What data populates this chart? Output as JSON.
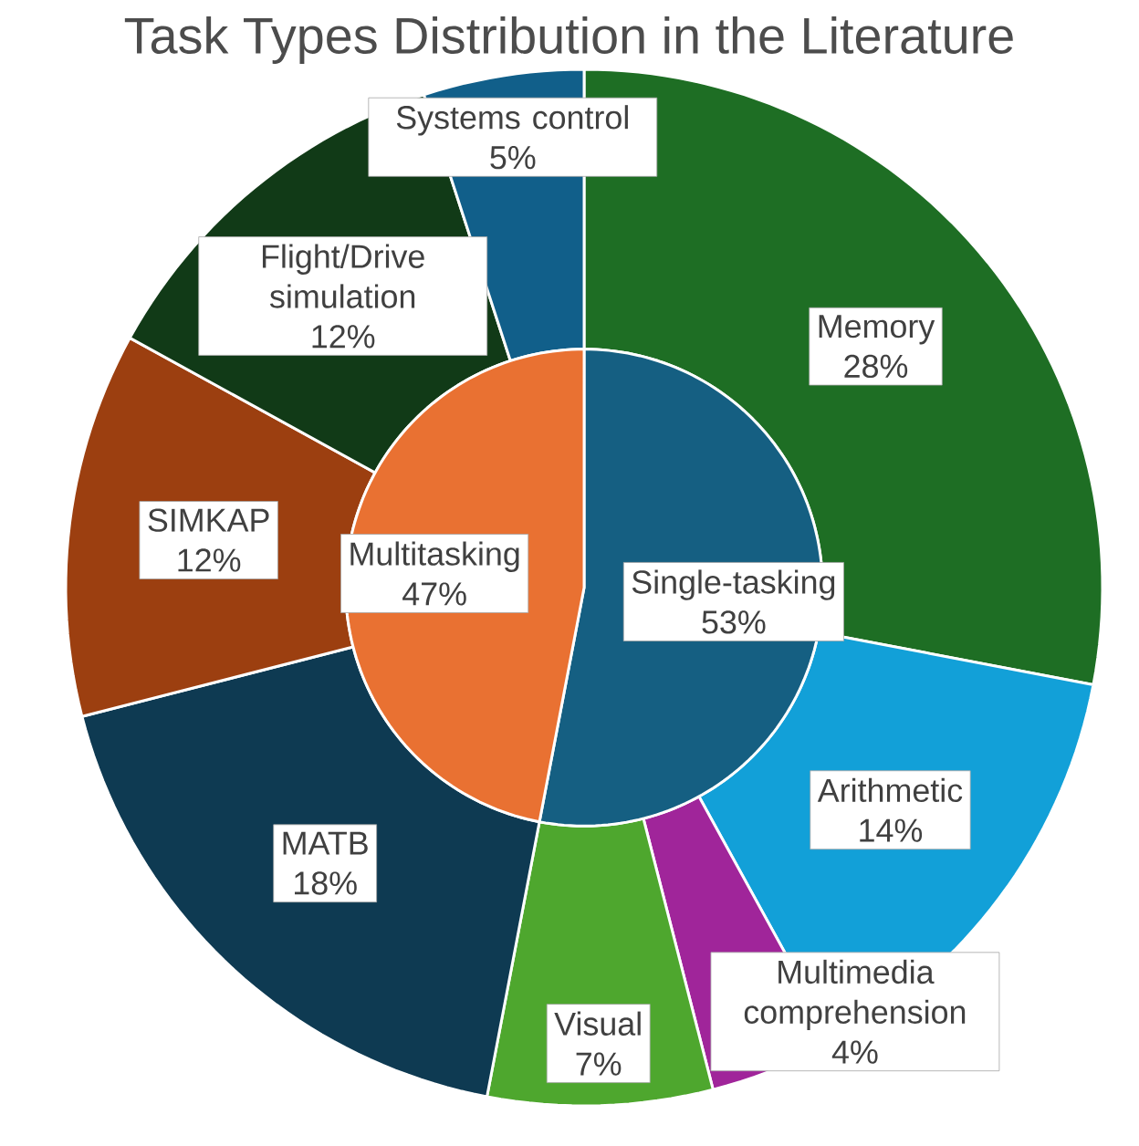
{
  "chart_data": [
    {
      "type": "pie",
      "title": "Task Types Distribution in the Literature",
      "categories": [
        "Single-tasking",
        "Multitasking"
      ],
      "values": [
        53,
        47
      ],
      "value_labels": [
        "53%",
        "47%"
      ],
      "colors": [
        "#155f82",
        "#e97132"
      ]
    },
    {
      "type": "donut",
      "categories": [
        "Memory",
        "Arithmetic",
        "Multimedia comprehension",
        "Visual",
        "MATB",
        "SIMKAP",
        "Flight/Drive simulation",
        "Systems control"
      ],
      "values": [
        28,
        14,
        4,
        7,
        18,
        12,
        12,
        5
      ],
      "value_labels": [
        "28%",
        "14%",
        "4%",
        "7%",
        "18%",
        "12%",
        "12%",
        "5%"
      ],
      "colors": [
        "#1e6e24",
        "#12a0d8",
        "#a0259a",
        "#4ea72e",
        "#0e3a52",
        "#9c3f10",
        "#113a17",
        "#115f8a"
      ]
    }
  ]
}
